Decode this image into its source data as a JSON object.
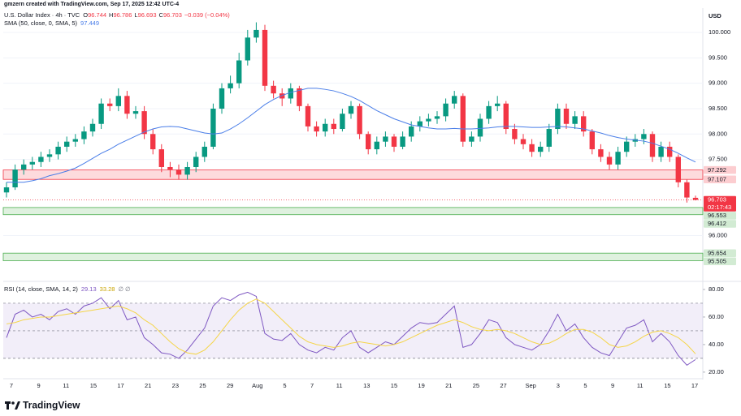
{
  "attribution": "gmzern created with TradingView.com, Sep 17, 2025 12:42 UTC-4",
  "brand": "TradingView",
  "chart_data": [
    {
      "type": "candlestick",
      "title": "U.S. Dollar Index · 4h · TVC",
      "ohlc_legend": [
        {
          "k": "O",
          "v": "96.744"
        },
        {
          "k": "H",
          "v": "96.786"
        },
        {
          "k": "L",
          "v": "96.693"
        },
        {
          "k": "C",
          "v": "96.703"
        }
      ],
      "change": "−0.039 (−0.04%)",
      "currency": "USD",
      "up_color": "#089981",
      "down_color": "#f23645",
      "open": [
        96.85,
        96.95,
        97.3,
        97.4,
        97.45,
        97.55,
        97.6,
        97.75,
        97.85,
        97.9,
        98.05,
        98.2,
        98.6,
        98.55,
        98.75,
        98.4,
        98.45,
        98.0,
        97.7,
        97.35,
        97.3,
        97.2,
        97.35,
        97.55,
        97.75,
        98.5,
        98.9,
        99.0,
        99.45,
        99.9,
        100.05,
        98.95,
        98.8,
        98.7,
        98.9,
        98.55,
        98.15,
        98.05,
        98.2,
        98.1,
        98.4,
        98.55,
        98.0,
        97.7,
        97.85,
        97.95,
        97.75,
        97.95,
        98.15,
        98.25,
        98.3,
        98.35,
        98.6,
        98.75,
        97.85,
        97.95,
        98.3,
        98.55,
        98.6,
        98.1,
        97.9,
        97.8,
        97.65,
        97.75,
        98.1,
        98.5,
        98.2,
        98.35,
        98.05,
        97.7,
        97.55,
        97.4,
        97.65,
        97.85,
        97.9,
        98.0,
        97.55,
        97.75,
        97.55,
        97.05,
        96.744
      ],
      "high": [
        97.05,
        97.4,
        97.5,
        97.55,
        97.65,
        97.7,
        97.85,
        97.95,
        98.0,
        98.15,
        98.3,
        98.7,
        98.7,
        98.9,
        98.85,
        98.55,
        98.55,
        98.1,
        97.8,
        97.45,
        97.4,
        97.45,
        97.65,
        97.85,
        98.6,
        99.0,
        99.15,
        99.6,
        100.05,
        100.2,
        100.15,
        99.05,
        98.9,
        99.0,
        98.95,
        98.6,
        98.25,
        98.3,
        98.3,
        98.5,
        98.65,
        98.6,
        98.05,
        97.95,
        98.05,
        98.0,
        98.05,
        98.25,
        98.35,
        98.4,
        98.45,
        98.7,
        98.85,
        98.8,
        98.05,
        98.4,
        98.65,
        98.75,
        98.65,
        98.2,
        98.0,
        97.9,
        97.85,
        98.2,
        98.6,
        98.6,
        98.45,
        98.45,
        98.1,
        97.8,
        97.65,
        97.75,
        97.95,
        98.0,
        98.1,
        98.05,
        97.85,
        97.85,
        97.6,
        97.1,
        96.786
      ],
      "low": [
        96.75,
        96.9,
        97.2,
        97.3,
        97.35,
        97.45,
        97.5,
        97.65,
        97.75,
        97.8,
        97.95,
        98.1,
        98.45,
        98.45,
        98.3,
        98.3,
        97.9,
        97.6,
        97.25,
        97.15,
        97.1,
        97.1,
        97.25,
        97.45,
        97.7,
        98.4,
        98.8,
        98.9,
        99.35,
        99.8,
        98.85,
        98.7,
        98.55,
        98.6,
        98.45,
        98.05,
        97.95,
        97.95,
        98.0,
        98.05,
        98.3,
        97.9,
        97.6,
        97.6,
        97.75,
        97.65,
        97.7,
        97.85,
        98.05,
        98.15,
        98.2,
        98.25,
        98.5,
        97.75,
        97.75,
        97.85,
        98.2,
        98.45,
        98.0,
        97.8,
        97.7,
        97.55,
        97.55,
        97.65,
        98.0,
        98.1,
        98.1,
        97.95,
        97.6,
        97.45,
        97.3,
        97.3,
        97.55,
        97.75,
        97.8,
        97.45,
        97.45,
        97.45,
        96.95,
        96.65,
        96.693
      ],
      "close": [
        96.95,
        97.3,
        97.4,
        97.45,
        97.55,
        97.6,
        97.75,
        97.85,
        97.9,
        98.05,
        98.2,
        98.6,
        98.55,
        98.75,
        98.4,
        98.45,
        98.0,
        97.7,
        97.35,
        97.3,
        97.2,
        97.35,
        97.55,
        97.75,
        98.5,
        98.9,
        99.0,
        99.45,
        99.9,
        100.05,
        98.95,
        98.8,
        98.7,
        98.9,
        98.55,
        98.15,
        98.05,
        98.2,
        98.1,
        98.4,
        98.55,
        98.0,
        97.7,
        97.85,
        97.95,
        97.75,
        97.95,
        98.15,
        98.25,
        98.3,
        98.35,
        98.6,
        98.75,
        97.85,
        97.95,
        98.3,
        98.55,
        98.6,
        98.1,
        97.9,
        97.8,
        97.65,
        97.75,
        98.1,
        98.5,
        98.2,
        98.35,
        98.05,
        97.7,
        97.55,
        97.4,
        97.65,
        97.85,
        97.9,
        98.0,
        97.55,
        97.75,
        97.55,
        97.05,
        96.75,
        96.703
      ],
      "sma": {
        "name": "SMA (50, close, 0, SMA, 5)",
        "value_text": "97.449",
        "color": "#4a7ee8",
        "values": [
          97.05,
          97.05,
          97.05,
          97.08,
          97.12,
          97.18,
          97.22,
          97.27,
          97.33,
          97.42,
          97.52,
          97.62,
          97.7,
          97.8,
          97.88,
          97.96,
          98.04,
          98.1,
          98.14,
          98.15,
          98.14,
          98.1,
          98.06,
          98.02,
          98.0,
          98.02,
          98.1,
          98.2,
          98.32,
          98.45,
          98.58,
          98.68,
          98.76,
          98.82,
          98.86,
          98.9,
          98.9,
          98.88,
          98.85,
          98.8,
          98.74,
          98.66,
          98.56,
          98.46,
          98.38,
          98.3,
          98.24,
          98.18,
          98.15,
          98.12,
          98.1,
          98.1,
          98.11,
          98.1,
          98.1,
          98.11,
          98.12,
          98.14,
          98.15,
          98.15,
          98.14,
          98.13,
          98.13,
          98.14,
          98.15,
          98.14,
          98.12,
          98.1,
          98.06,
          98.02,
          97.97,
          97.93,
          97.9,
          97.88,
          97.86,
          97.82,
          97.76,
          97.7,
          97.62,
          97.53,
          97.449
        ]
      },
      "zones": [
        {
          "top": 97.292,
          "bottom": 97.107,
          "color": "#f23645"
        },
        {
          "top": 96.553,
          "bottom": 96.412,
          "color": "#4caf50"
        },
        {
          "top": 95.654,
          "bottom": 95.505,
          "color": "#4caf50"
        }
      ],
      "current": {
        "value": 96.703,
        "countdown": "02:17:43",
        "color": "#f23645"
      },
      "ylim": [
        95.13,
        100.48
      ],
      "yticks": [
        {
          "value": 100,
          "label": "100.000"
        },
        {
          "value": 99.5,
          "label": "99.500"
        },
        {
          "value": 99,
          "label": "99.000"
        },
        {
          "value": 98.5,
          "label": "98.500"
        },
        {
          "value": 98,
          "label": "98.000"
        },
        {
          "value": 97.5,
          "label": "97.500"
        },
        {
          "value": 96,
          "label": "96.000"
        }
      ],
      "xtick_labels": [
        "7",
        "9",
        "11",
        "15",
        "17",
        "21",
        "23",
        "25",
        "29",
        "Aug",
        "5",
        "7",
        "11",
        "13",
        "15",
        "19",
        "21",
        "25",
        "27",
        "Sep",
        "3",
        "5",
        "9",
        "11",
        "15",
        "17"
      ]
    },
    {
      "type": "line",
      "title": "RSI (14, close, SMA, 14, 2)",
      "value_texts": [
        "29.13",
        "33.28",
        "∅ ∅"
      ],
      "series": [
        {
          "color": "#7e57c2",
          "values": [
            45,
            62,
            65,
            60,
            62,
            58,
            64,
            66,
            62,
            68,
            70,
            74,
            66,
            72,
            58,
            60,
            45,
            40,
            34,
            33,
            30,
            36,
            44,
            52,
            68,
            74,
            72,
            76,
            78,
            75,
            48,
            44,
            43,
            48,
            40,
            36,
            34,
            38,
            36,
            45,
            50,
            38,
            34,
            38,
            42,
            40,
            46,
            52,
            56,
            55,
            56,
            62,
            68,
            38,
            40,
            48,
            58,
            56,
            45,
            40,
            38,
            36,
            40,
            50,
            62,
            50,
            55,
            45,
            38,
            34,
            32,
            42,
            52,
            54,
            58,
            42,
            48,
            42,
            32,
            25,
            29.13
          ]
        },
        {
          "color": "#f5d547",
          "values": [
            55,
            56,
            58,
            59,
            60,
            60,
            61,
            62,
            63,
            64,
            65,
            66,
            67,
            68,
            66,
            63,
            58,
            54,
            48,
            42,
            37,
            34,
            33,
            36,
            42,
            50,
            58,
            65,
            70,
            73,
            70,
            64,
            58,
            52,
            46,
            42,
            40,
            39,
            38,
            39,
            41,
            42,
            41,
            40,
            39,
            40,
            42,
            45,
            48,
            51,
            54,
            56,
            58,
            56,
            53,
            51,
            50,
            51,
            50,
            48,
            45,
            42,
            40,
            41,
            44,
            48,
            51,
            51,
            49,
            45,
            40,
            38,
            39,
            42,
            46,
            49,
            50,
            48,
            45,
            40,
            33.28
          ]
        }
      ],
      "bands": [
        70,
        50,
        30
      ],
      "ylim": [
        16.4,
        84.1
      ],
      "yticks": [
        {
          "value": 80,
          "label": "80.00"
        },
        {
          "value": 60,
          "label": "60.00"
        },
        {
          "value": 40,
          "label": "40.00"
        },
        {
          "value": 20,
          "label": "20.00"
        }
      ]
    }
  ]
}
